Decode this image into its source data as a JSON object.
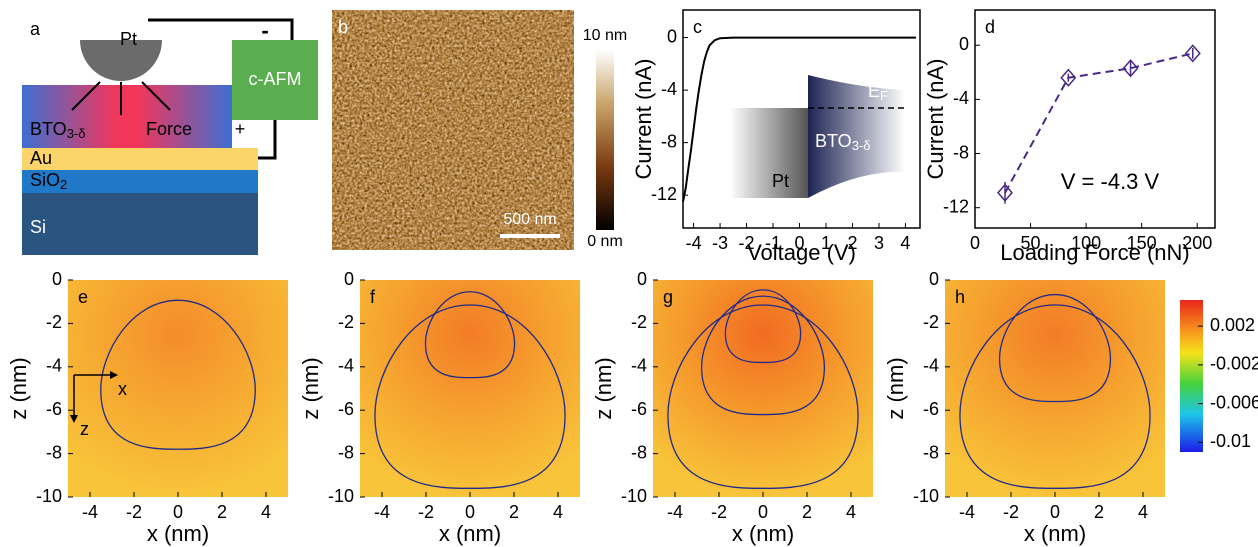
{
  "panel_a": {
    "label": "a",
    "tip": "Pt",
    "force": "Force",
    "bto": "BTO",
    "bto_sub": "3-δ",
    "au": "Au",
    "sio": "SiO",
    "sio_sub": "2",
    "si": "Si",
    "afm": "c-AFM",
    "minus": "-",
    "plus": "+"
  },
  "panel_b": {
    "label": "b",
    "bar_max": "10 nm",
    "bar_min": "0 nm",
    "scale": "500 nm"
  },
  "chart_data": [
    {
      "type": "line",
      "label": "c",
      "x_label": "Voltage (V)",
      "y_label": "Current (nA)",
      "x": [
        -4.4,
        -4.3,
        -4.2,
        -4.1,
        -4.0,
        -3.9,
        -3.8,
        -3.7,
        -3.6,
        -3.5,
        -3.4,
        -3.2,
        -3.0,
        -2.5,
        -2.0,
        0,
        2,
        4.4
      ],
      "values": [
        -12.5,
        -11.5,
        -10,
        -8.6,
        -7,
        -5.4,
        -4,
        -2.8,
        -1.8,
        -1.1,
        -0.6,
        -0.2,
        -0.05,
        0,
        0,
        0,
        0,
        0
      ],
      "color": "#000000",
      "xlim": [
        -4.4,
        4.55
      ],
      "ylim": [
        -14.5,
        2.1
      ],
      "xticks": [
        -4,
        -3,
        -2,
        -1,
        0,
        1,
        2,
        3,
        4
      ],
      "yticks": [
        0,
        -4,
        -8,
        -12
      ],
      "inset": {
        "metal": "Pt",
        "oxide": "BTO",
        "oxide_sub": "3-δ",
        "level": "E",
        "level_sub": "F"
      }
    },
    {
      "type": "scatter",
      "label": "d",
      "x_label": "Loading Force (nN)",
      "y_label": "Current (nA)",
      "x": [
        27,
        84,
        140,
        196
      ],
      "values": [
        -10.9,
        -2.4,
        -1.7,
        -0.6
      ],
      "errors": [
        0.8,
        0.3,
        0.5,
        0.4
      ],
      "color": "#4b2a85",
      "xlim": [
        0,
        216
      ],
      "ylim": [
        -13.5,
        2.6
      ],
      "xticks": [
        0,
        50,
        100,
        150,
        200
      ],
      "yticks": [
        0,
        -4,
        -8,
        -12
      ],
      "annotation": "V = -4.3 V"
    },
    {
      "type": "heatmap",
      "label": "e",
      "x_label": "x (nm)",
      "y_label": "z (nm)",
      "xlim": [
        -5,
        5
      ],
      "ylim": [
        -10,
        0
      ],
      "xticks": [
        -4,
        -2,
        0,
        2,
        4
      ],
      "yticks": [
        0,
        -2,
        -4,
        -6,
        -8,
        -10
      ],
      "contour_depths": [
        -7.8
      ],
      "axes_inset": {
        "x": "x",
        "z": "z"
      }
    },
    {
      "type": "heatmap",
      "label": "f",
      "x_label": "x (nm)",
      "y_label": "z (nm)",
      "xlim": [
        -5,
        5
      ],
      "ylim": [
        -10,
        0
      ],
      "xticks": [
        -4,
        -2,
        0,
        2,
        4
      ],
      "yticks": [
        0,
        -2,
        -4,
        -6,
        -8,
        -10
      ],
      "contour_depths": [
        -4.5,
        -9.6
      ]
    },
    {
      "type": "heatmap",
      "label": "g",
      "x_label": "x (nm)",
      "y_label": "z (nm)",
      "xlim": [
        -5,
        5
      ],
      "ylim": [
        -10,
        0
      ],
      "xticks": [
        -4,
        -2,
        0,
        2,
        4
      ],
      "yticks": [
        0,
        -2,
        -4,
        -6,
        -8,
        -10
      ],
      "contour_depths": [
        -3.8,
        -6.2,
        -9.6
      ]
    },
    {
      "type": "heatmap",
      "label": "h",
      "x_label": "x (nm)",
      "y_label": "z (nm)",
      "xlim": [
        -5,
        5
      ],
      "ylim": [
        -10,
        0
      ],
      "xticks": [
        -4,
        -2,
        0,
        2,
        4
      ],
      "yticks": [
        0,
        -2,
        -4,
        -6,
        -8,
        -10
      ],
      "contour_depths": [
        -5.6,
        -9.6
      ],
      "colorbar": {
        "lim": [
          -0.011,
          0.0047
        ],
        "ticks": [
          0.002,
          -0.002,
          -0.006,
          -0.01
        ]
      }
    }
  ]
}
